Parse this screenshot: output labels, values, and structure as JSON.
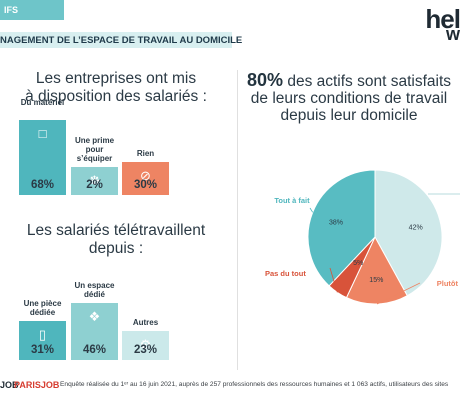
{
  "header": {
    "tag_text": "IFS",
    "logo_top": "hel",
    "logo_bottom": "w",
    "title": "NAGEMENT DE L’ESPACE DE TRAVAIL AU DOMICILE"
  },
  "left": {
    "section1": {
      "title_line1": "Les entreprises ont mis",
      "title_line2": "à disposition des salariés :"
    },
    "section2": {
      "title_line1": "Les salariés télétravaillent",
      "title_line2": "depuis :"
    }
  },
  "right": {
    "headline_pct": "80%",
    "headline_rest": " des actifs sont satisfaits",
    "headline_line2": "de leurs conditions de travail",
    "headline_line3": "depuis leur domicile"
  },
  "chart_data": [
    {
      "type": "bar",
      "title": "Les entreprises ont mis à disposition des salariés :",
      "categories": [
        "Du matériel",
        "Une prime pour s’équiper",
        "Rien"
      ],
      "values": [
        68,
        2,
        30
      ],
      "value_labels": [
        "68%",
        "2%",
        "30%"
      ],
      "colors": [
        "#4fb6bd",
        "#8ed0d1",
        "#ee8463"
      ],
      "icons": [
        "monitor-icon",
        "hand-coin-icon",
        "no-sign-icon"
      ]
    },
    {
      "type": "bar",
      "title": "Les salariés télétravaillent depuis :",
      "categories": [
        "Une pièce dédiée",
        "Un espace dédié",
        "Autres"
      ],
      "values": [
        31,
        46,
        23
      ],
      "value_labels": [
        "31%",
        "46%",
        "23%"
      ],
      "colors": [
        "#4fb6bd",
        "#8ed0d1",
        "#cbe9ea"
      ],
      "icons": [
        "door-icon",
        "desk-icon",
        "gear-icon"
      ]
    },
    {
      "type": "pie",
      "categories": [
        "Tout à fait",
        "Plutôt",
        "Plutôt pas",
        "Pas du tout"
      ],
      "values": [
        38,
        42,
        15,
        5
      ],
      "value_labels": [
        "38%",
        "42%",
        "15%",
        "5%"
      ],
      "visible_labels": [
        "Tout à fait",
        "",
        "Plutôt",
        "Pas du tout"
      ],
      "colors": [
        "#58bcc2",
        "#cfe9ea",
        "#ee8463",
        "#d8533a"
      ]
    }
  ],
  "footer": {
    "logo1": "JOB",
    "logo2": "PARISJOB",
    "text": "Enquête réalisée du 1ᵉʳ au 16 juin 2021, auprès de 257 professionnels des ressources humaines et 1 063 actifs, utilisateurs des sites"
  }
}
